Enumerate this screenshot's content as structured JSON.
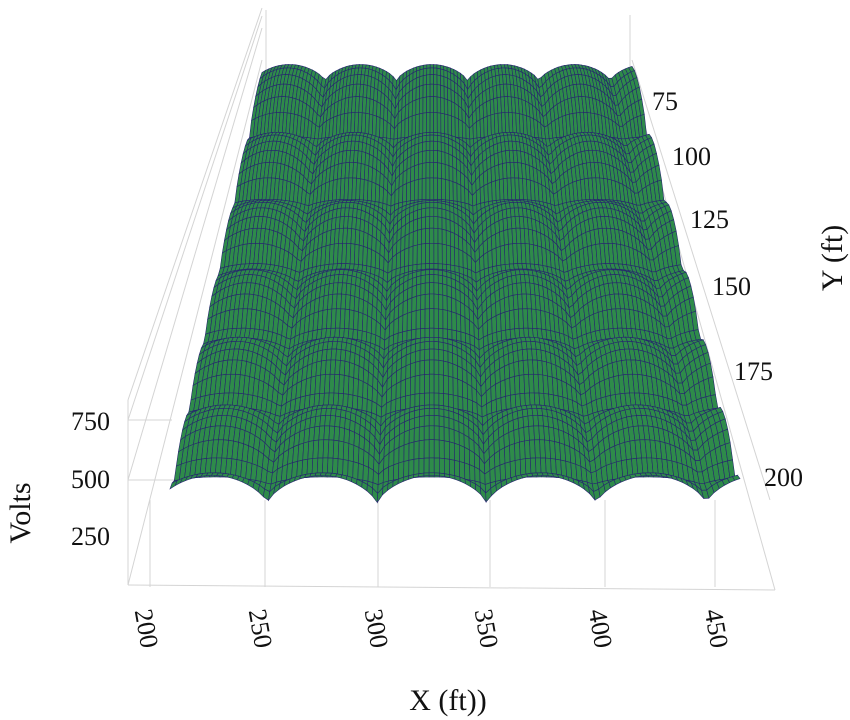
{
  "chart_data": {
    "type": "surface3d",
    "title": "",
    "x_axis": {
      "label": "X (ft))",
      "ticks": [
        200,
        250,
        300,
        350,
        400,
        450
      ],
      "range": [
        200,
        470
      ]
    },
    "y_axis": {
      "label": "Y (ft)",
      "ticks": [
        75,
        100,
        125,
        150,
        175,
        200
      ],
      "range": [
        50,
        210
      ]
    },
    "z_axis": {
      "label": "Volts",
      "ticks": [
        250,
        500,
        750
      ],
      "range": [
        0,
        900
      ]
    },
    "surface": {
      "description_of_values": "periodic dome pattern",
      "x_period_ft": 52,
      "y_period_ft": 26,
      "peak_volts": 810,
      "trough_volts": 430
    },
    "grid": true,
    "colors": {
      "surface_fill": "#2e8b4a",
      "mesh_line": "#26266e",
      "grid": "#d4d4d4",
      "text": "#111111"
    }
  }
}
